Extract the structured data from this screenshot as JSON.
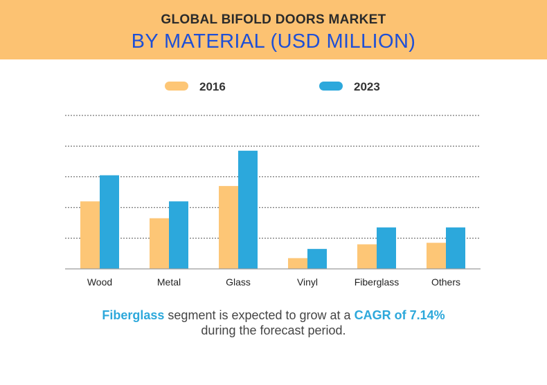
{
  "header": {
    "title_line1": "GLOBAL BIFOLD DOORS MARKET",
    "title_line2": "BY MATERIAL (USD MILLION)"
  },
  "colors": {
    "banner": "#fcc272",
    "series_2016": "#fdc676",
    "series_2023": "#2ca8dc",
    "title_blue": "#1e4fd6",
    "highlight": "#2da8db"
  },
  "chart_data": {
    "type": "bar",
    "categories": [
      "Wood",
      "Metal",
      "Glass",
      "Vinyl",
      "Fiberglass",
      "Others"
    ],
    "series": [
      {
        "name": "2016",
        "values": [
          44,
          33,
          54,
          7,
          16,
          17
        ]
      },
      {
        "name": "2023",
        "values": [
          61,
          44,
          77,
          13,
          27,
          27
        ]
      }
    ],
    "ylim": [
      0,
      100
    ],
    "grid": true,
    "legend_position": "top-center",
    "title": "GLOBAL BIFOLD DOORS MARKET BY MATERIAL (USD MILLION)"
  },
  "caption": {
    "highlight_segment": "Fiberglass",
    "text_middle": " segment is expected to grow at a ",
    "highlight_cagr": "CAGR of 7.14%",
    "line2": "during the forecast period."
  }
}
